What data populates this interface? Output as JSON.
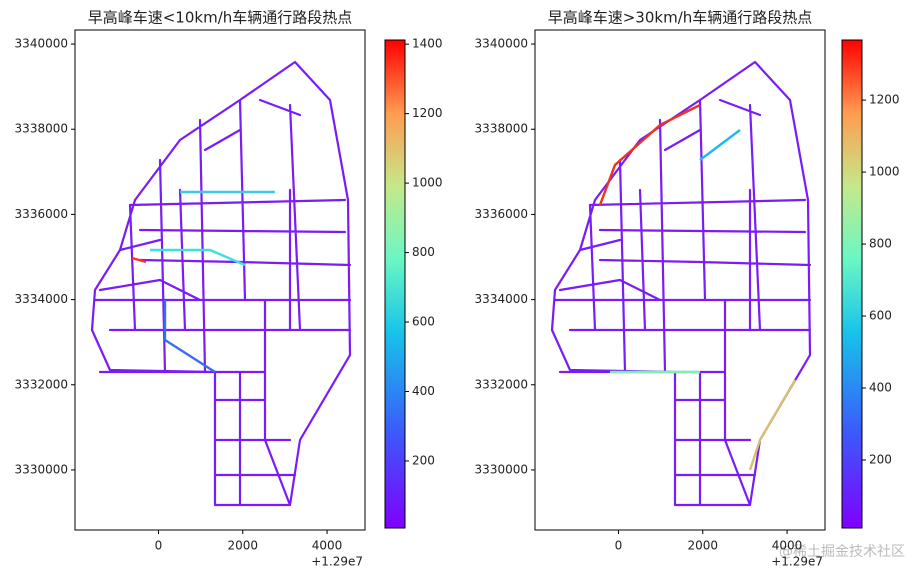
{
  "chart_data": [
    {
      "type": "map",
      "title": "早高峰车速<10km/h车辆通行路段热点",
      "xlim": [
        -1980,
        4900
      ],
      "xticks": [
        0,
        2000,
        4000
      ],
      "x_offset_label": "+1.29e7",
      "ylim": [
        3328590,
        3340330
      ],
      "yticks": [
        3330000,
        3332000,
        3334000,
        3336000,
        3338000,
        3340000
      ],
      "colorbar": {
        "lim": [
          7,
          1412
        ],
        "ticks": [
          200,
          400,
          600,
          800,
          1000,
          1200,
          1400
        ]
      }
    },
    {
      "type": "map",
      "title": "早高峰车速>30km/h车辆通行路段热点",
      "xlim": [
        -1980,
        4900
      ],
      "xticks": [
        0,
        2000,
        4000
      ],
      "x_offset_label": "+1.29e7",
      "ylim": [
        3328590,
        3340330
      ],
      "yticks": [
        3330000,
        3332000,
        3334000,
        3336000,
        3338000,
        3340000
      ],
      "colorbar": {
        "lim": [
          11,
          1367
        ],
        "ticks": [
          200,
          400,
          600,
          800,
          1000,
          1200
        ]
      }
    }
  ],
  "watermark": "@稀土掘金技术社区"
}
